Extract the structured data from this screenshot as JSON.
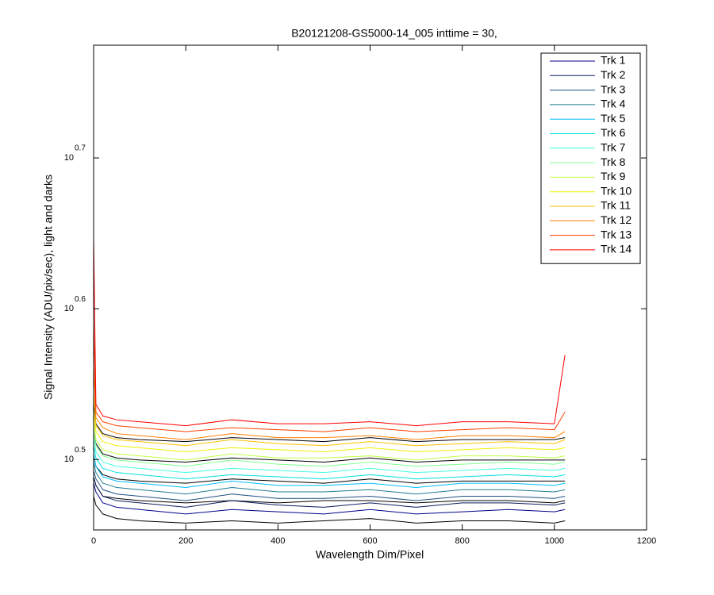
{
  "chart_data": {
    "type": "line",
    "title": "B20121208-GS5000-14_005 inttime = 30,",
    "xlabel": "Wavelength Dim/Pixel",
    "ylabel": "Signal Intensity (ADU/pix/sec), light and darks",
    "log_y": true,
    "legend": "northeast",
    "xlim": [
      0,
      1200
    ],
    "xticks": [
      0,
      200,
      400,
      600,
      800,
      1000,
      1200
    ],
    "ylim": [
      2.84,
      5.953
    ],
    "yticks": [
      {
        "value": 3.1623,
        "label": "10",
        "exponent": "0.5"
      },
      {
        "value": 3.9811,
        "label": "10",
        "exponent": "0.6"
      },
      {
        "value": 5.0119,
        "label": "10",
        "exponent": "0.7"
      }
    ],
    "x": [
      0,
      5,
      20,
      50,
      100,
      200,
      300,
      400,
      500,
      600,
      700,
      800,
      900,
      1000,
      1023
    ],
    "series": [
      {
        "color": "#000000",
        "values": [
          2.99,
          2.95,
          2.91,
          2.89,
          2.88,
          2.87,
          2.88,
          2.87,
          2.88,
          2.89,
          2.87,
          2.88,
          2.88,
          2.87,
          2.88
        ]
      },
      {
        "color": "#000000",
        "values": [
          3.08,
          3.04,
          2.99,
          2.98,
          2.97,
          2.96,
          2.97,
          2.96,
          2.97,
          2.97,
          2.96,
          2.97,
          2.97,
          2.96,
          2.97
        ]
      },
      {
        "color": "#000000",
        "values": [
          3.18,
          3.13,
          3.09,
          3.07,
          3.06,
          3.05,
          3.07,
          3.06,
          3.05,
          3.07,
          3.05,
          3.06,
          3.06,
          3.06,
          3.06
        ]
      },
      {
        "color": "#000000",
        "values": [
          3.3,
          3.24,
          3.19,
          3.17,
          3.16,
          3.15,
          3.17,
          3.16,
          3.15,
          3.17,
          3.15,
          3.16,
          3.16,
          3.16,
          3.16
        ]
      },
      {
        "color": "#000000",
        "values": [
          3.45,
          3.34,
          3.29,
          3.27,
          3.26,
          3.25,
          3.27,
          3.26,
          3.25,
          3.27,
          3.25,
          3.26,
          3.26,
          3.26,
          3.27
        ]
      },
      {
        "name": "Trk 1",
        "color": "#00008b",
        "values": [
          3.05,
          3.01,
          2.96,
          2.94,
          2.93,
          2.91,
          2.93,
          2.92,
          2.91,
          2.93,
          2.91,
          2.92,
          2.93,
          2.92,
          2.93
        ]
      },
      {
        "name": "Trk 2",
        "color": "#0a1a5c",
        "values": [
          3.08,
          3.04,
          2.99,
          2.97,
          2.96,
          2.94,
          2.97,
          2.95,
          2.94,
          2.96,
          2.94,
          2.96,
          2.96,
          2.95,
          2.96
        ]
      },
      {
        "name": "Trk 3",
        "color": "#1f4f80",
        "values": [
          3.11,
          3.07,
          3.02,
          3.0,
          2.99,
          2.97,
          3.0,
          2.98,
          2.98,
          2.99,
          2.97,
          2.99,
          2.99,
          2.98,
          2.99
        ]
      },
      {
        "name": "Trk 4",
        "color": "#1f7f8f",
        "values": [
          3.15,
          3.1,
          3.05,
          3.03,
          3.02,
          3.0,
          3.03,
          3.01,
          3.01,
          3.02,
          3.0,
          3.02,
          3.02,
          3.01,
          3.02
        ]
      },
      {
        "name": "Trk 5",
        "color": "#00bfff",
        "values": [
          3.19,
          3.13,
          3.08,
          3.06,
          3.05,
          3.03,
          3.06,
          3.04,
          3.04,
          3.05,
          3.03,
          3.05,
          3.05,
          3.04,
          3.05
        ]
      },
      {
        "name": "Trk 6",
        "color": "#00dfe0",
        "values": [
          3.23,
          3.17,
          3.12,
          3.1,
          3.09,
          3.07,
          3.09,
          3.08,
          3.07,
          3.09,
          3.07,
          3.08,
          3.09,
          3.08,
          3.09
        ]
      },
      {
        "name": "Trk 7",
        "color": "#40ffe0",
        "values": [
          3.27,
          3.2,
          3.15,
          3.13,
          3.12,
          3.1,
          3.12,
          3.11,
          3.1,
          3.12,
          3.1,
          3.11,
          3.12,
          3.11,
          3.12
        ]
      },
      {
        "name": "Trk 8",
        "color": "#80ff90",
        "values": [
          3.31,
          3.23,
          3.18,
          3.16,
          3.15,
          3.13,
          3.16,
          3.14,
          3.13,
          3.15,
          3.13,
          3.14,
          3.15,
          3.14,
          3.15
        ]
      },
      {
        "name": "Trk 9",
        "color": "#c0ff40",
        "values": [
          3.35,
          3.26,
          3.21,
          3.19,
          3.18,
          3.16,
          3.19,
          3.17,
          3.17,
          3.18,
          3.16,
          3.18,
          3.18,
          3.17,
          3.18
        ]
      },
      {
        "name": "Trk 10",
        "color": "#f0f000",
        "values": [
          3.4,
          3.3,
          3.25,
          3.23,
          3.22,
          3.2,
          3.22,
          3.21,
          3.2,
          3.22,
          3.2,
          3.21,
          3.22,
          3.21,
          3.22
        ]
      },
      {
        "name": "Trk 11",
        "color": "#ffc000",
        "values": [
          3.5,
          3.33,
          3.28,
          3.26,
          3.25,
          3.23,
          3.26,
          3.24,
          3.23,
          3.25,
          3.23,
          3.24,
          3.25,
          3.24,
          3.26
        ]
      },
      {
        "name": "Trk 12",
        "color": "#ff8000",
        "values": [
          3.65,
          3.37,
          3.32,
          3.29,
          3.28,
          3.26,
          3.29,
          3.27,
          3.27,
          3.28,
          3.26,
          3.28,
          3.28,
          3.27,
          3.3
        ]
      },
      {
        "name": "Trk 13",
        "color": "#ff4000",
        "values": [
          3.9,
          3.4,
          3.35,
          3.33,
          3.32,
          3.3,
          3.32,
          3.31,
          3.3,
          3.32,
          3.3,
          3.31,
          3.32,
          3.31,
          3.4
        ]
      },
      {
        "name": "Trk 14",
        "color": "#ff0000",
        "values": [
          4.45,
          3.44,
          3.38,
          3.36,
          3.35,
          3.33,
          3.36,
          3.34,
          3.34,
          3.35,
          3.33,
          3.35,
          3.35,
          3.34,
          3.71
        ]
      }
    ]
  }
}
